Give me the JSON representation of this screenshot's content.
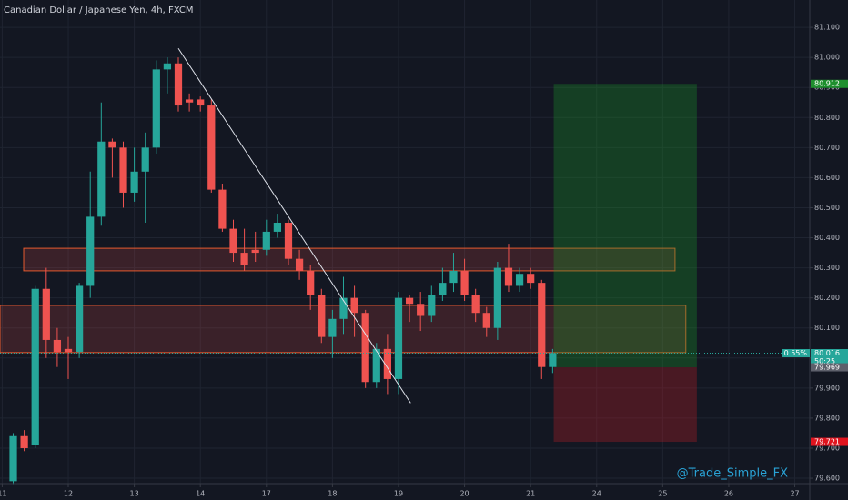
{
  "chart_data": {
    "type": "candlestick",
    "title": "Canadian Dollar / Japanese Yen, 4h, FXCM",
    "watermark": "@Trade_Simple_FX",
    "up_color": "#26a69a",
    "down_color": "#ef5350",
    "grid": true,
    "xlim": [
      -1.2,
      72.36
    ],
    "ylim": [
      79.582,
      81.191
    ],
    "xticks": [
      {
        "value": -1,
        "label": "11"
      },
      {
        "value": 5,
        "label": "12"
      },
      {
        "value": 11,
        "label": "13"
      },
      {
        "value": 17,
        "label": "14"
      },
      {
        "value": 23,
        "label": "17"
      },
      {
        "value": 29,
        "label": "18"
      },
      {
        "value": 35,
        "label": "19"
      },
      {
        "value": 41,
        "label": "20"
      },
      {
        "value": 47,
        "label": "21"
      },
      {
        "value": 53,
        "label": "24"
      },
      {
        "value": 59,
        "label": "25"
      },
      {
        "value": 65,
        "label": "26"
      },
      {
        "value": 71,
        "label": "27"
      }
    ],
    "yticks": [
      {
        "value": 81.1,
        "label": "81.100"
      },
      {
        "value": 81.0,
        "label": "81.000"
      },
      {
        "value": 80.9,
        "label": "80.900"
      },
      {
        "value": 80.8,
        "label": "80.800"
      },
      {
        "value": 80.7,
        "label": "80.700"
      },
      {
        "value": 80.6,
        "label": "80.600"
      },
      {
        "value": 80.5,
        "label": "80.500"
      },
      {
        "value": 80.4,
        "label": "80.400"
      },
      {
        "value": 80.3,
        "label": "80.300"
      },
      {
        "value": 80.2,
        "label": "80.200"
      },
      {
        "value": 80.1,
        "label": "80.100"
      },
      {
        "value": 80.0,
        "label": "80.000"
      },
      {
        "value": 79.9,
        "label": "79.900"
      },
      {
        "value": 79.8,
        "label": "79.800"
      },
      {
        "value": 79.7,
        "label": "79.700"
      },
      {
        "value": 79.6,
        "label": "79.600"
      }
    ],
    "x": [
      0,
      1,
      2,
      3,
      4,
      5,
      6,
      7,
      8,
      9,
      10,
      11,
      12,
      13,
      14,
      15,
      16,
      17,
      18,
      19,
      20,
      21,
      22,
      23,
      24,
      25,
      26,
      27,
      28,
      29,
      30,
      31,
      32,
      33,
      34,
      35,
      36,
      37,
      38,
      39,
      40,
      41,
      42,
      43,
      44,
      45,
      46,
      47,
      48,
      49
    ],
    "open": [
      79.59,
      79.74,
      79.71,
      80.23,
      80.06,
      80.03,
      80.02,
      80.24,
      80.47,
      80.72,
      80.7,
      80.55,
      80.62,
      80.7,
      80.96,
      80.98,
      80.86,
      80.86,
      80.84,
      80.56,
      80.43,
      80.35,
      80.36,
      80.36,
      80.42,
      80.45,
      80.33,
      80.29,
      80.21,
      80.07,
      80.13,
      80.2,
      80.15,
      79.92,
      80.03,
      79.93,
      80.2,
      80.18,
      80.14,
      80.21,
      80.25,
      80.29,
      80.21,
      80.15,
      80.1,
      80.3,
      80.24,
      80.28,
      80.25,
      79.97
    ],
    "high": [
      79.75,
      79.76,
      80.24,
      80.3,
      80.1,
      80.07,
      80.25,
      80.62,
      80.85,
      80.73,
      80.72,
      80.7,
      80.75,
      80.99,
      81.0,
      81.0,
      80.88,
      80.87,
      80.86,
      80.58,
      80.46,
      80.43,
      80.42,
      80.46,
      80.48,
      80.46,
      80.36,
      80.31,
      80.23,
      80.16,
      80.27,
      80.24,
      80.16,
      80.05,
      80.08,
      80.22,
      80.21,
      80.22,
      80.24,
      80.3,
      80.35,
      80.33,
      80.23,
      80.17,
      80.32,
      80.38,
      80.3,
      80.3,
      80.26,
      80.03
    ],
    "low": [
      79.58,
      79.69,
      79.7,
      80.0,
      79.97,
      79.93,
      80.0,
      80.2,
      80.44,
      80.6,
      80.5,
      80.52,
      80.45,
      80.68,
      80.88,
      80.82,
      80.82,
      80.82,
      80.55,
      80.42,
      80.32,
      80.29,
      80.32,
      80.34,
      80.4,
      80.31,
      80.26,
      80.16,
      80.05,
      80.0,
      80.08,
      80.07,
      79.9,
      79.9,
      79.88,
      79.88,
      80.12,
      80.09,
      80.12,
      80.19,
      80.22,
      80.19,
      80.12,
      80.07,
      80.06,
      80.22,
      80.22,
      80.23,
      79.93,
      79.95
    ],
    "close": [
      79.74,
      79.7,
      80.23,
      80.06,
      80.02,
      80.02,
      80.24,
      80.47,
      80.72,
      80.7,
      80.55,
      80.62,
      80.7,
      80.96,
      80.98,
      80.84,
      80.85,
      80.84,
      80.56,
      80.43,
      80.35,
      80.31,
      80.35,
      80.42,
      80.45,
      80.33,
      80.29,
      80.21,
      80.07,
      80.13,
      80.2,
      80.15,
      79.92,
      80.03,
      79.93,
      80.2,
      80.18,
      80.14,
      80.21,
      80.25,
      80.29,
      80.21,
      80.15,
      80.1,
      80.3,
      80.24,
      80.28,
      80.25,
      79.97,
      80.016
    ],
    "trendline": {
      "x": [
        15,
        36.1
      ],
      "y": [
        81.03,
        79.85
      ],
      "color": "#e0e3eb"
    },
    "zones": [
      {
        "x": [
          0.95,
          60.12
        ],
        "y": [
          80.29,
          80.365
        ]
      },
      {
        "x": [
          -1.2,
          61.1
        ],
        "y": [
          80.018,
          80.175
        ]
      }
    ],
    "position": {
      "x": [
        49.1,
        62.1
      ],
      "entry": 79.969,
      "target": 80.912,
      "stop": 79.721
    },
    "price_labels": [
      {
        "value": 80.912,
        "label": "80.912",
        "color": "#1e8f2e"
      },
      {
        "value": 80.016,
        "label": "80.016",
        "color": "#26a69a",
        "change": "0.55%",
        "countdown": "50:25",
        "dashed": true
      },
      {
        "value": 79.969,
        "label": "79.969",
        "color": "#5d606b"
      },
      {
        "value": 79.721,
        "label": "79.721",
        "color": "#e0141e"
      }
    ]
  }
}
